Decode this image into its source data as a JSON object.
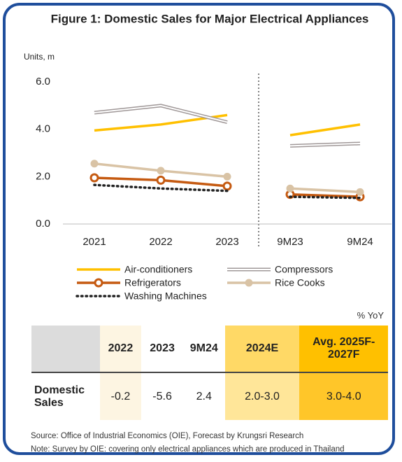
{
  "chart_data": {
    "type": "line",
    "title": "Figure 1: Domestic Sales for Major Electrical Appliances",
    "y_label": "Units, m",
    "categories": [
      "2021",
      "2022",
      "2023",
      "9M23",
      "9M24"
    ],
    "ylim": [
      0,
      6
    ],
    "yticks": [
      {
        "value": 0,
        "label": "0.0"
      },
      {
        "value": 2,
        "label": "2.0"
      },
      {
        "value": 4,
        "label": "4.0"
      },
      {
        "value": 6,
        "label": "6.0"
      }
    ],
    "series": [
      {
        "name": "Air-conditioners",
        "color": "#ffc000",
        "values": [
          3.95,
          4.2,
          4.6,
          3.75,
          4.2
        ]
      },
      {
        "name": "Compressors",
        "color": "#a09898",
        "style": "double",
        "values": [
          4.7,
          5.0,
          4.3,
          3.3,
          3.4
        ]
      },
      {
        "name": "Refrigerators",
        "color": "#c55a11",
        "marker": "circle-open",
        "values": [
          1.95,
          1.85,
          1.6,
          1.25,
          1.15
        ]
      },
      {
        "name": "Rice Cooks",
        "color": "#d9c3a5",
        "marker": "circle",
        "values": [
          2.55,
          2.25,
          2.0,
          1.5,
          1.35
        ]
      },
      {
        "name": "Washing Machines",
        "color": "#222222",
        "dash": "dotted",
        "values": [
          1.65,
          1.5,
          1.4,
          1.15,
          1.1
        ]
      }
    ]
  },
  "table": {
    "unit": "% YoY",
    "header": [
      "",
      "2022",
      "2023",
      "9M24",
      "2024E",
      "Avg. 2025F-2027F"
    ],
    "rows": [
      [
        "Domestic Sales",
        "-0.2",
        "-5.6",
        "2.4",
        "2.0-3.0",
        "3.0-4.0"
      ]
    ]
  },
  "source": "Source: Office of Industrial Economics (OIE), Forecast by Krungsri Research",
  "note": "Note: Survey by OIE: covering only electrical appliances which are produced in Thailand"
}
